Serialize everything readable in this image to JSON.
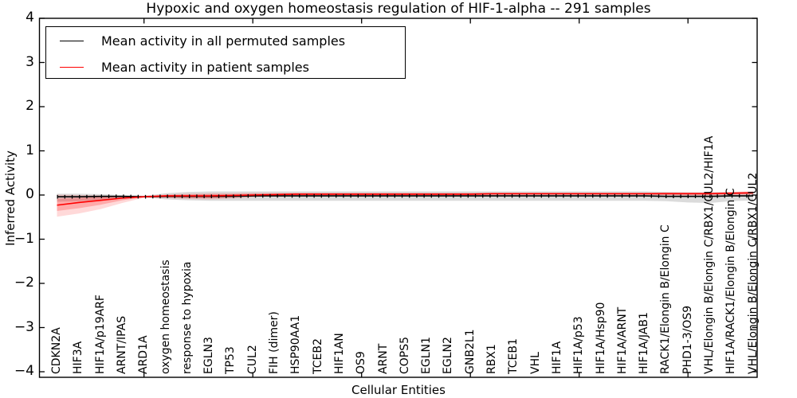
{
  "figure": {
    "title": "Hypoxic and oxygen homeostasis regulation of HIF-1-alpha -- 291 samples",
    "xlabel": "Cellular Entities",
    "ylabel": "Inferred Activity",
    "background": "#ffffff"
  },
  "legend": {
    "entries": [
      {
        "label": "Mean activity in all permuted samples",
        "color": "#000000"
      },
      {
        "label": "Mean activity in patient samples",
        "color": "#ff0000"
      }
    ]
  },
  "axes": {
    "y_tick_labels": [
      "4",
      "3",
      "2",
      "1",
      "0",
      "−1",
      "−2",
      "−3",
      "−4"
    ],
    "y_tick_values": [
      4,
      3,
      2,
      1,
      0,
      -1,
      -2,
      -3,
      -4
    ],
    "x_major_tick_indices": [
      4,
      9,
      14,
      19,
      24,
      29
    ],
    "frame_color": "#000000"
  },
  "chart_data": {
    "type": "line",
    "title": "Hypoxic and oxygen homeostasis regulation of HIF-1-alpha -- 291 samples",
    "xlabel": "Cellular Entities",
    "ylabel": "Inferred Activity",
    "ylim": [
      -4.15,
      4
    ],
    "grid": false,
    "legend_position": "upper left",
    "n_samples": 291,
    "categories": [
      "CDKN2A",
      "HIF3A",
      "HIF1A/p19ARF",
      "ARNT/IPAS",
      "ARD1A",
      "oxygen homeostasis",
      "response to hypoxia",
      "EGLN3",
      "TP53",
      "CUL2",
      "FIH (dimer)",
      "HSP90AA1",
      "TCEB2",
      "HIF1AN",
      "OS9",
      "ARNT",
      "COPS5",
      "EGLN1",
      "EGLN2",
      "GNB2L1",
      "RBX1",
      "TCEB1",
      "VHL",
      "HIF1A",
      "HIF1A/p53",
      "HIF1A/Hsp90",
      "HIF1A/ARNT",
      "HIF1A/JAB1",
      "RACK1/Elongin B/Elongin C",
      "PHD1-3/OS9",
      "VHL/Elongin B/Elongin C/RBX1/CUL2/HIF1A",
      "HIF1A/RACK1/Elongin B/Elongin C",
      "VHL/Elongin B/Elongin C/RBX1/CUL2"
    ],
    "series": [
      {
        "name": "Mean activity in all permuted samples",
        "color": "#000000",
        "values": [
          -0.04,
          -0.04,
          -0.03,
          -0.03,
          -0.04,
          -0.03,
          -0.03,
          -0.03,
          -0.03,
          -0.02,
          -0.02,
          -0.02,
          -0.02,
          -0.02,
          -0.02,
          -0.02,
          -0.02,
          -0.02,
          -0.02,
          -0.02,
          -0.02,
          -0.02,
          -0.02,
          -0.02,
          -0.02,
          -0.02,
          -0.02,
          -0.02,
          -0.03,
          -0.03,
          -0.03,
          -0.02,
          -0.02
        ]
      },
      {
        "name": "Mean activity in patient samples",
        "color": "#ff0000",
        "values": [
          -0.23,
          -0.17,
          -0.12,
          -0.07,
          -0.04,
          -0.02,
          -0.02,
          -0.02,
          -0.01,
          0.0,
          0.01,
          0.02,
          0.02,
          0.02,
          0.02,
          0.02,
          0.02,
          0.02,
          0.02,
          0.02,
          0.03,
          0.03,
          0.03,
          0.03,
          0.03,
          0.03,
          0.03,
          0.03,
          0.03,
          0.03,
          0.03,
          0.04,
          0.05
        ]
      }
    ],
    "bands": [
      {
        "name": "permuted-samples-spread",
        "color": "#999999",
        "opacity": 0.35,
        "upper": [
          0.03,
          0.03,
          0.02,
          0.0,
          -0.02,
          0.04,
          0.07,
          0.08,
          0.08,
          0.08,
          0.08,
          0.08,
          0.08,
          0.08,
          0.08,
          0.08,
          0.08,
          0.08,
          0.08,
          0.08,
          0.08,
          0.08,
          0.08,
          0.08,
          0.08,
          0.08,
          0.08,
          0.08,
          0.07,
          0.06,
          0.06,
          0.07,
          0.07
        ],
        "lower": [
          -0.15,
          -0.14,
          -0.12,
          -0.08,
          -0.05,
          -0.1,
          -0.12,
          -0.13,
          -0.13,
          -0.13,
          -0.13,
          -0.13,
          -0.13,
          -0.13,
          -0.13,
          -0.13,
          -0.13,
          -0.13,
          -0.13,
          -0.13,
          -0.13,
          -0.13,
          -0.13,
          -0.13,
          -0.13,
          -0.13,
          -0.13,
          -0.13,
          -0.14,
          -0.17,
          -0.18,
          -0.14,
          -0.12
        ]
      },
      {
        "name": "patient-samples-outer-spread",
        "color": "#ff0000",
        "opacity": 0.15,
        "upper": [
          0.01,
          0.0,
          -0.01,
          -0.02,
          -0.02,
          0.01,
          0.03,
          0.04,
          0.04,
          0.05,
          0.05,
          0.05,
          0.05,
          0.05,
          0.05,
          0.05,
          0.05,
          0.05,
          0.05,
          0.05,
          0.05,
          0.05,
          0.05,
          0.05,
          0.05,
          0.05,
          0.05,
          0.05,
          0.06,
          0.06,
          0.06,
          0.07,
          0.09
        ],
        "lower": [
          -0.49,
          -0.42,
          -0.32,
          -0.18,
          -0.06,
          -0.07,
          -0.09,
          -0.1,
          -0.08,
          -0.05,
          -0.02,
          -0.01,
          -0.01,
          -0.01,
          -0.01,
          -0.01,
          -0.01,
          -0.01,
          -0.01,
          -0.01,
          -0.01,
          -0.01,
          0.0,
          0.0,
          0.0,
          0.0,
          0.0,
          0.0,
          -0.01,
          -0.02,
          -0.02,
          -0.01,
          0.0
        ]
      },
      {
        "name": "patient-samples-inner-spread",
        "color": "#ff0000",
        "opacity": 0.22,
        "upper": [
          -0.08,
          -0.06,
          -0.04,
          -0.03,
          -0.03,
          0.0,
          0.01,
          0.02,
          0.02,
          0.03,
          0.03,
          0.04,
          0.04,
          0.04,
          0.04,
          0.04,
          0.04,
          0.04,
          0.04,
          0.04,
          0.04,
          0.04,
          0.04,
          0.04,
          0.04,
          0.04,
          0.04,
          0.04,
          0.05,
          0.05,
          0.05,
          0.06,
          0.07
        ],
        "lower": [
          -0.36,
          -0.3,
          -0.22,
          -0.12,
          -0.05,
          -0.05,
          -0.06,
          -0.07,
          -0.05,
          -0.03,
          -0.01,
          0.0,
          0.0,
          0.0,
          0.0,
          0.0,
          0.0,
          0.0,
          0.0,
          0.0,
          0.01,
          0.01,
          0.01,
          0.01,
          0.01,
          0.01,
          0.01,
          0.01,
          0.01,
          0.01,
          0.01,
          0.02,
          0.02
        ]
      }
    ]
  }
}
